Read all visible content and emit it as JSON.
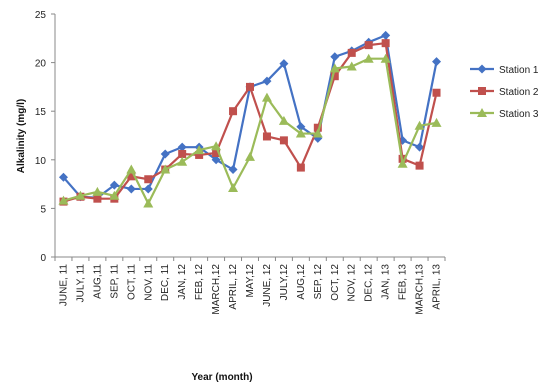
{
  "chart_data": {
    "type": "line",
    "title": "",
    "xlabel": "Year (month)",
    "ylabel": "Alkalinity (mg/l)",
    "ylim": [
      0,
      25
    ],
    "yticks": [
      0,
      5,
      10,
      15,
      20,
      25
    ],
    "grid": false,
    "legend_position": "right",
    "categories": [
      "JUNE, 11",
      "JULY, 11",
      "AUG,11",
      "SEP, 11",
      "OCT, 11",
      "NOV, 11",
      "DEC, 11",
      "JAN, 12",
      "FEB, 12",
      "MARCH,12",
      "APRIL, 12",
      "MAY,12",
      "JUNE, 12",
      "JULY,12",
      "AUG,12",
      "SEP, 12",
      "OCT, 12",
      "NOV, 12",
      "DEC, 12",
      "JAN, 13",
      "FEB, 13",
      "MARCH,13",
      "APRIL, 13"
    ],
    "series": [
      {
        "name": "Station 1",
        "color": "#4472C4",
        "marker": "diamond",
        "values": [
          8.2,
          6.2,
          6.1,
          7.4,
          7.0,
          7.0,
          10.6,
          11.3,
          11.3,
          10.0,
          9.0,
          17.5,
          18.1,
          19.9,
          13.4,
          12.2,
          20.6,
          21.2,
          22.1,
          22.8,
          12.0,
          11.3,
          20.1
        ]
      },
      {
        "name": "Station 2",
        "color": "#C0504D",
        "marker": "square",
        "values": [
          5.7,
          6.2,
          6.0,
          6.0,
          8.3,
          8.0,
          9.0,
          10.6,
          10.5,
          10.7,
          15.0,
          17.5,
          12.4,
          12.0,
          9.2,
          13.3,
          18.6,
          21.0,
          21.8,
          22.0,
          10.1,
          9.4,
          16.9
        ]
      },
      {
        "name": "Station 3",
        "color": "#9BBB59",
        "marker": "triangle",
        "values": [
          5.8,
          6.3,
          6.7,
          6.3,
          9.0,
          5.5,
          9.0,
          9.8,
          11.0,
          11.4,
          7.1,
          10.3,
          16.4,
          14.0,
          12.7,
          12.7,
          19.4,
          19.6,
          20.4,
          20.4,
          9.6,
          13.5,
          13.8
        ]
      }
    ]
  }
}
